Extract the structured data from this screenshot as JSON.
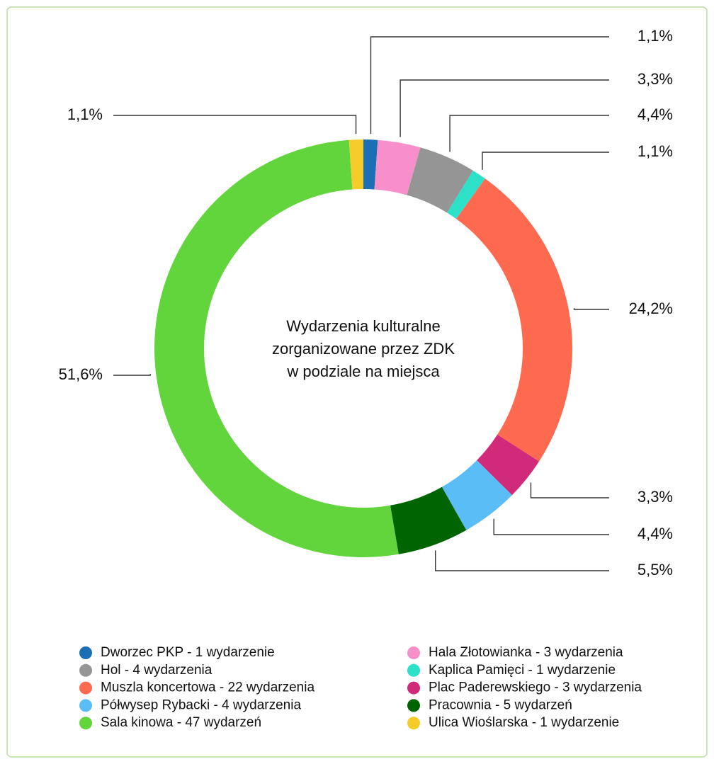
{
  "chart_data": {
    "type": "donut",
    "title": [
      "Wydarzenia kulturalne",
      "zorganizowane przez ZDK",
      "w podziale na miejsca"
    ],
    "categories": [
      "Dworzec PKP - 1 wydarzenie",
      "Hala Złotowianka - 3 wydarzenia",
      "Hol - 4 wydarzenia",
      "Kaplica Pamięci - 1 wydarzenie",
      "Muszla koncertowa - 22 wydarzenia",
      "Plac Paderewskiego - 3 wydarzenia",
      "Półwysep Rybacki - 4 wydarzenia",
      "Pracownia - 5 wydarzeń",
      "Sala kinowa - 47 wydarzeń",
      "Ulica Wioślarska - 1 wydarzenie"
    ],
    "values": [
      1.1,
      3.3,
      4.4,
      1.1,
      24.2,
      3.3,
      4.4,
      5.5,
      51.6,
      1.1
    ],
    "value_labels": [
      "1,1%",
      "3,3%",
      "4,4%",
      "1,1%",
      "24,2%",
      "3,3%",
      "4,4%",
      "5,5%",
      "51,6%",
      "1,1%"
    ],
    "colors": [
      "#1a6fb5",
      "#f78fcb",
      "#959595",
      "#2de0c8",
      "#fd6a4f",
      "#d12a7a",
      "#5bbdf5",
      "#006400",
      "#62d43c",
      "#f5cc2a"
    ],
    "legend": "bottom"
  }
}
